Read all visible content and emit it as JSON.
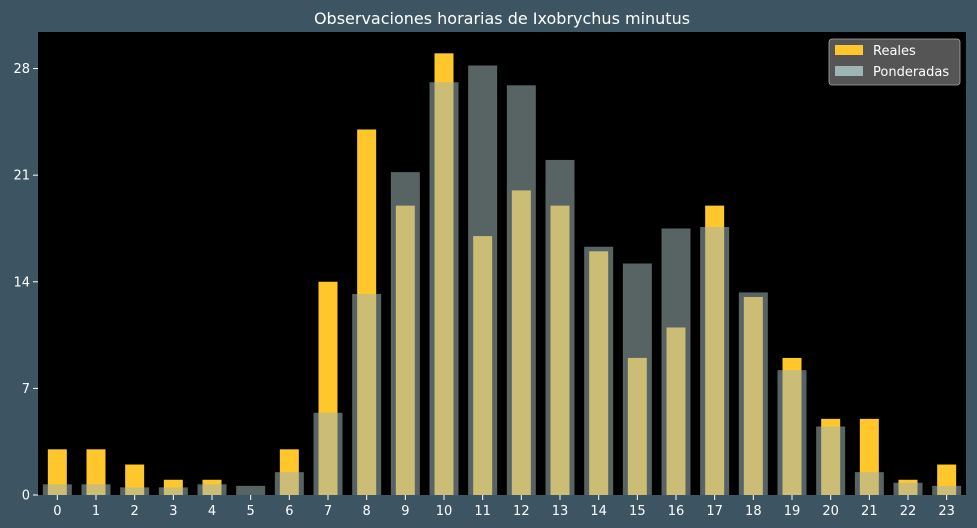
{
  "chart_data": {
    "type": "bar",
    "title": "Observaciones horarias de Ixobrychus minutus",
    "xlabel": "",
    "ylabel": "",
    "categories": [
      "0",
      "1",
      "2",
      "3",
      "4",
      "5",
      "6",
      "7",
      "8",
      "9",
      "10",
      "11",
      "12",
      "13",
      "14",
      "15",
      "16",
      "17",
      "18",
      "19",
      "20",
      "21",
      "22",
      "23"
    ],
    "yticks": [
      0,
      7,
      14,
      21,
      28
    ],
    "ylim": [
      0,
      30.4
    ],
    "legend_position": "top-right",
    "series": [
      {
        "name": "Reales",
        "color": "#ffc72c",
        "values": [
          3,
          3,
          2,
          1,
          1,
          0,
          3,
          14,
          24,
          19,
          29,
          17,
          20,
          19,
          16,
          9,
          11,
          19,
          13,
          9,
          5,
          5,
          1,
          2
        ]
      },
      {
        "name": "Ponderadas",
        "color": "#a0b4b4",
        "opacity": 0.55,
        "values": [
          0.7,
          0.7,
          0.5,
          0.5,
          0.7,
          0.6,
          1.5,
          5.4,
          13.2,
          21.2,
          27.1,
          28.2,
          26.9,
          22.0,
          16.3,
          15.2,
          17.5,
          17.6,
          13.3,
          8.2,
          4.5,
          1.5,
          0.8,
          0.6
        ]
      }
    ]
  }
}
